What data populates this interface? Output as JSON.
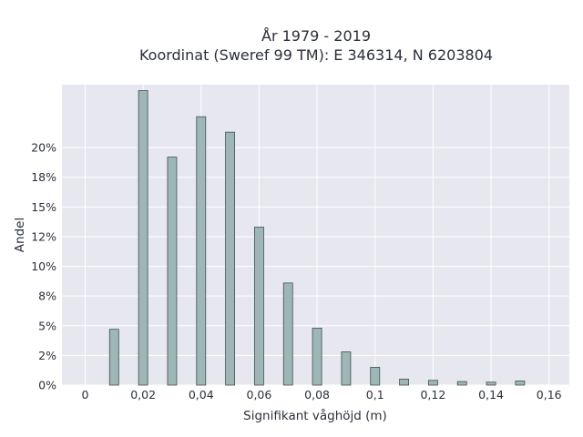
{
  "chart_data": {
    "type": "bar",
    "title_line1": "År 1979 - 2019",
    "title_line2": "Koordinat (Sweref 99 TM): E 346314, N 6203804",
    "xlabel": "Signifikant våghöjd (m)",
    "ylabel": "Andel",
    "x": [
      0.01,
      0.02,
      0.03,
      0.04,
      0.05,
      0.06,
      0.07,
      0.08,
      0.09,
      0.1,
      0.11,
      0.12,
      0.13,
      0.14,
      0.15
    ],
    "values": [
      4.7,
      24.8,
      19.2,
      22.6,
      21.3,
      13.3,
      8.6,
      4.8,
      2.8,
      1.5,
      0.5,
      0.4,
      0.3,
      0.25,
      0.35
    ],
    "xlim": [
      -0.008,
      0.167
    ],
    "ylim": [
      0,
      25.3
    ],
    "xticks": [
      0,
      0.02,
      0.04,
      0.06,
      0.08,
      0.1,
      0.12,
      0.14,
      0.16
    ],
    "xtick_labels": [
      "0",
      "0,02",
      "0,04",
      "0,06",
      "0,08",
      "0,1",
      "0,12",
      "0,14",
      "0,16"
    ],
    "yticks": [
      0,
      2.5,
      5,
      7.5,
      10,
      12.5,
      15,
      17.5,
      20
    ],
    "ytick_labels": [
      "0%",
      "2%",
      "5%",
      "8%",
      "10%",
      "12%",
      "15%",
      "18%",
      "20%"
    ],
    "grid": true,
    "bar_color": "#9fb6b6",
    "bar_edge_color": "#3e4f4f",
    "plot_bg": "#e7e7ef"
  }
}
